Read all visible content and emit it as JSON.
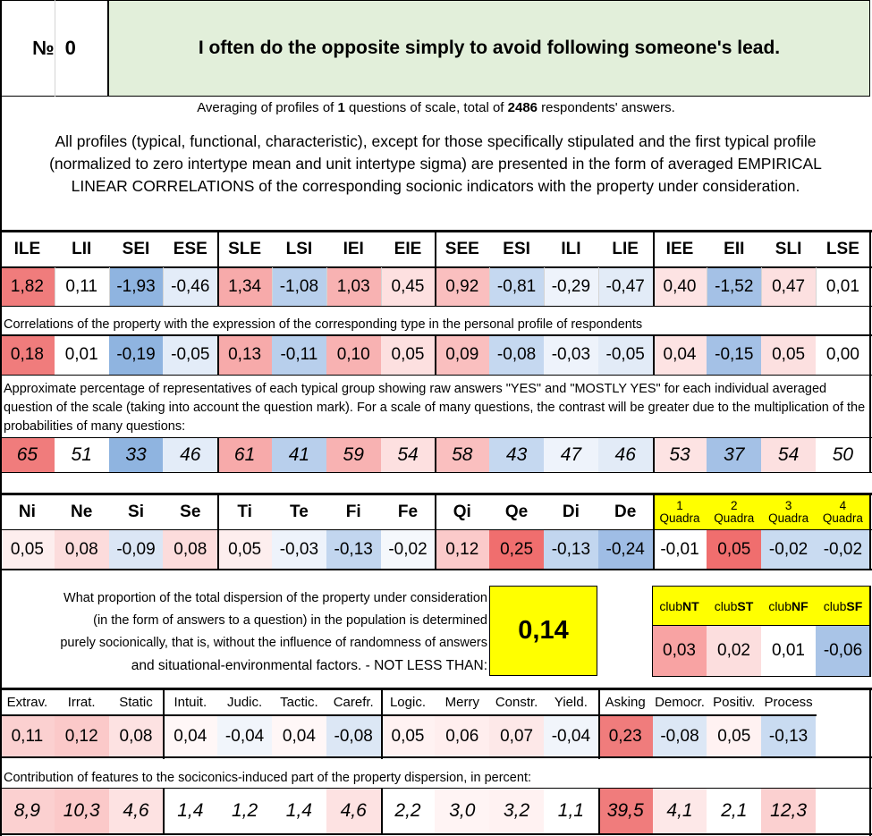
{
  "header": {
    "num_label": "№",
    "num_value": "0",
    "question": "I often do the opposite simply to avoid following someone's lead."
  },
  "averaging": {
    "prefix": "Averaging of profiles of ",
    "count": "1",
    "middle": " questions of scale, total of ",
    "total": "2486",
    "suffix": " respondents' answers."
  },
  "intro_text": "All profiles (typical, functional, characteristic), except for those specifically stipulated and the first typical profile (normalized to zero intertype mean and unit intertype sigma) are presented in the form of averaged EMPIRICAL LINEAR CORRELATIONS of the corresponding socionic indicators with the property under consideration.",
  "types": {
    "headers": [
      "ILE",
      "LII",
      "SEI",
      "ESE",
      "SLE",
      "LSI",
      "IEI",
      "EIE",
      "SEE",
      "ESI",
      "ILI",
      "LIE",
      "IEE",
      "EII",
      "SLI",
      "LSE"
    ],
    "profile": [
      "1,82",
      "0,11",
      "-1,93",
      "-0,46",
      "1,34",
      "-1,08",
      "1,03",
      "0,45",
      "0,92",
      "-0,81",
      "-0,29",
      "-0,47",
      "0,40",
      "-1,52",
      "0,47",
      "0,01"
    ],
    "profile_colors": [
      "#f07c7c",
      "#ffffff",
      "#8fb4e0",
      "#e3ecf8",
      "#f7aaaa",
      "#b8cfec",
      "#f8b2b2",
      "#fde0e0",
      "#fabfbf",
      "#c5d8f0",
      "#eef3fb",
      "#e2ebf7",
      "#fde3e3",
      "#a4c1e6",
      "#fce0e0",
      "#ffffff"
    ],
    "corr_note": "Correlations of the property with the expression of the corresponding type in the personal profile of respondents",
    "corr": [
      "0,18",
      "0,01",
      "-0,19",
      "-0,05",
      "0,13",
      "-0,11",
      "0,10",
      "0,05",
      "0,09",
      "-0,08",
      "-0,03",
      "-0,05",
      "0,04",
      "-0,15",
      "0,05",
      "0,00"
    ],
    "corr_colors": [
      "#f07c7c",
      "#ffffff",
      "#8fb4e0",
      "#e3ecf8",
      "#f7aaaa",
      "#b8cfec",
      "#f8b2b2",
      "#fde0e0",
      "#fabfbf",
      "#c5d8f0",
      "#eef3fb",
      "#e2ebf7",
      "#fde3e3",
      "#a4c1e6",
      "#fce0e0",
      "#ffffff"
    ],
    "pct_note": "Approximate percentage of representatives of each typical group showing raw answers \"YES\" and \"MOSTLY YES\" for each individual averaged question of the scale (taking into account the question mark). For a scale of many questions, the contrast will be greater due to the multiplication of the probabilities of many questions:",
    "pct": [
      "65",
      "51",
      "33",
      "46",
      "61",
      "41",
      "59",
      "54",
      "58",
      "43",
      "47",
      "46",
      "53",
      "37",
      "54",
      "50"
    ],
    "pct_colors": [
      "#f07c7c",
      "#ffffff",
      "#8fb4e0",
      "#e3ecf8",
      "#f7aaaa",
      "#b8cfec",
      "#f8b2b2",
      "#fde0e0",
      "#fabfbf",
      "#c5d8f0",
      "#eef3fb",
      "#e2ebf7",
      "#fde3e3",
      "#a4c1e6",
      "#fce0e0",
      "#ffffff"
    ]
  },
  "functions": {
    "headers": [
      "Ni",
      "Ne",
      "Si",
      "Se",
      "Ti",
      "Te",
      "Fi",
      "Fe",
      "Qi",
      "Qe",
      "Di",
      "De"
    ],
    "values": [
      "0,05",
      "0,08",
      "-0,09",
      "0,08",
      "0,05",
      "-0,03",
      "-0,13",
      "-0,02",
      "0,12",
      "0,25",
      "-0,13",
      "-0,24"
    ],
    "colors": [
      "#fdeeee",
      "#fcdcdc",
      "#dbe6f5",
      "#fcdcdc",
      "#fdeeee",
      "#eef3fb",
      "#c2d6ef",
      "#f5f8fc",
      "#fbcaca",
      "#f06e6e",
      "#c2d6ef",
      "#9fbde5"
    ]
  },
  "quadras": {
    "top": [
      "1",
      "2",
      "3",
      "4"
    ],
    "label": "Quadra",
    "values": [
      "-0,01",
      "0,05",
      "-0,02",
      "-0,02"
    ],
    "colors": [
      "#ffffff",
      "#f06e6e",
      "#c9dbf1",
      "#c9dbf1"
    ]
  },
  "dispersion": {
    "text_lines": [
      "What proportion of the total dispersion of the property under consideration",
      "(in the form of answers to a question) in the population is determined",
      "purely socionically, that is, without the influence of randomness of answers",
      "and situational-environmental factors. - NOT LESS THAN:"
    ],
    "value": "0,14"
  },
  "clubs": {
    "prefix": "club",
    "names": [
      "NT",
      "ST",
      "NF",
      "SF"
    ],
    "values": [
      "0,03",
      "0,02",
      "0,01",
      "-0,06"
    ],
    "colors": [
      "#f8a3a3",
      "#fcdede",
      "#ffffff",
      "#a9c4e7"
    ]
  },
  "traits": {
    "headers": [
      "Extrav.",
      "Irrat.",
      "Static",
      "Intuit.",
      "Judic.",
      "Tactic.",
      "Carefr.",
      "Logic.",
      "Merry",
      "Constr.",
      "Yield.",
      "Asking",
      "Democr.",
      "Positiv.",
      "Process"
    ],
    "values": [
      "0,11",
      "0,12",
      "0,08",
      "0,04",
      "-0,04",
      "0,04",
      "-0,08",
      "0,05",
      "0,06",
      "0,07",
      "-0,04",
      "0,23",
      "-0,08",
      "0,05",
      "-0,13"
    ],
    "colors": [
      "#fbd0d0",
      "#fbc9c9",
      "#fde2e2",
      "#fff7f7",
      "#f1f5fb",
      "#fff7f7",
      "#dce7f5",
      "#fff2f2",
      "#ffeeee",
      "#fde8e8",
      "#f1f5fb",
      "#f07c7c",
      "#dce7f5",
      "#fff2f2",
      "#c9dbf1"
    ],
    "contrib_note": "Contribution of features to the sociconics-induced part of the property dispersion, in percent:",
    "contrib": [
      "8,9",
      "10,3",
      "4,6",
      "1,4",
      "1,2",
      "1,4",
      "4,6",
      "2,2",
      "3,0",
      "3,2",
      "1,1",
      "39,5",
      "4,1",
      "2,1",
      "12,3"
    ],
    "contrib_colors": [
      "#fbd0d0",
      "#fbc9c9",
      "#fde2e2",
      "#ffffff",
      "#ffffff",
      "#ffffff",
      "#fde2e2",
      "#ffffff",
      "#fff4f4",
      "#fff2f2",
      "#ffffff",
      "#f07c7c",
      "#fde8e8",
      "#ffffff",
      "#fbd0d0"
    ]
  },
  "colors": {
    "header_bg": "#e2efda",
    "highlight_yellow": "#ffff00"
  }
}
